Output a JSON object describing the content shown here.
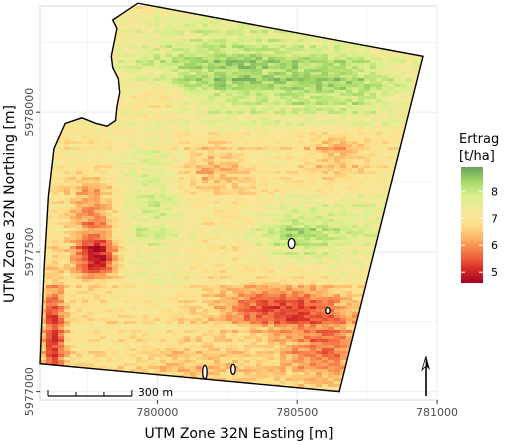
{
  "chart_data": {
    "type": "heatmap",
    "xlabel": "UTM Zone 32N Easting [m]",
    "ylabel": "UTM Zone 32N Northing [m]",
    "x_ticks": [
      {
        "value": 780000,
        "label": "780000"
      },
      {
        "value": 780500,
        "label": "780500"
      },
      {
        "value": 781000,
        "label": "781000"
      }
    ],
    "y_ticks": [
      {
        "value": 5977000,
        "label": "5977000"
      },
      {
        "value": 5977500,
        "label": "5977500"
      },
      {
        "value": 5978000,
        "label": "5978000"
      }
    ],
    "xlim": [
      779580,
      781000
    ],
    "ylim": [
      5976970,
      5978380
    ],
    "grid": true,
    "legend": {
      "title": "Ertrag\n[t/ha]",
      "placement": "right",
      "min": 4.6,
      "max": 8.9,
      "ticks": [
        5,
        6,
        7,
        8
      ],
      "colors": [
        "#a50026",
        "#d73027",
        "#f46d43",
        "#fdae61",
        "#fee08b",
        "#f5e89a",
        "#d9ef8b",
        "#a6d96a",
        "#66a05a"
      ]
    },
    "scale_bar": {
      "length_m": 300,
      "label": "300 m",
      "segments": 3
    },
    "north_arrow": true,
    "field_boundary": [
      [
        779840,
        5978330
      ],
      [
        779855,
        5978300
      ],
      [
        779845,
        5978250
      ],
      [
        779835,
        5978200
      ],
      [
        779840,
        5978160
      ],
      [
        779860,
        5978120
      ],
      [
        779865,
        5978070
      ],
      [
        779855,
        5978020
      ],
      [
        779850,
        5977970
      ],
      [
        779820,
        5977950
      ],
      [
        779780,
        5977960
      ],
      [
        779730,
        5977980
      ],
      [
        779670,
        5977960
      ],
      [
        779630,
        5977870
      ],
      [
        779610,
        5977700
      ],
      [
        779595,
        5977450
      ],
      [
        779580,
        5977100
      ],
      [
        780650,
        5977000
      ],
      [
        780950,
        5978200
      ],
      [
        779930,
        5978390
      ]
    ],
    "exclusions": [
      {
        "x": 780480,
        "y": 5977530,
        "rx": 12,
        "ry": 18
      },
      {
        "x": 780170,
        "y": 5977070,
        "rx": 8,
        "ry": 24
      },
      {
        "x": 780270,
        "y": 5977080,
        "rx": 8,
        "ry": 18
      },
      {
        "x": 780610,
        "y": 5977290,
        "rx": 8,
        "ry": 11
      }
    ],
    "yield_zones": [
      {
        "x": 780250,
        "y": 5978150,
        "sx": 400,
        "sy": 170,
        "amp": 1.3
      },
      {
        "x": 780700,
        "y": 5978080,
        "sx": 260,
        "sy": 150,
        "amp": 0.9
      },
      {
        "x": 779980,
        "y": 5977650,
        "sx": 120,
        "sy": 260,
        "amp": 0.8
      },
      {
        "x": 780480,
        "y": 5977560,
        "sx": 140,
        "sy": 100,
        "amp": 1.0
      },
      {
        "x": 780700,
        "y": 5977600,
        "sx": 180,
        "sy": 180,
        "amp": 0.6
      },
      {
        "x": 779780,
        "y": 5977480,
        "sx": 70,
        "sy": 80,
        "amp": -2.2
      },
      {
        "x": 779770,
        "y": 5977650,
        "sx": 90,
        "sy": 120,
        "amp": -1.0
      },
      {
        "x": 780450,
        "y": 5977300,
        "sx": 230,
        "sy": 80,
        "amp": -1.6
      },
      {
        "x": 780600,
        "y": 5977150,
        "sx": 150,
        "sy": 110,
        "amp": -1.2
      },
      {
        "x": 780200,
        "y": 5977800,
        "sx": 140,
        "sy": 90,
        "amp": -0.8
      },
      {
        "x": 780650,
        "y": 5977850,
        "sx": 140,
        "sy": 110,
        "amp": -0.9
      },
      {
        "x": 779630,
        "y": 5977200,
        "sx": 40,
        "sy": 200,
        "amp": -1.8
      },
      {
        "x": 780150,
        "y": 5977100,
        "sx": 220,
        "sy": 80,
        "amp": -0.5
      },
      {
        "x": 780000,
        "y": 5978050,
        "sx": 100,
        "sy": 80,
        "amp": -0.6
      }
    ]
  }
}
